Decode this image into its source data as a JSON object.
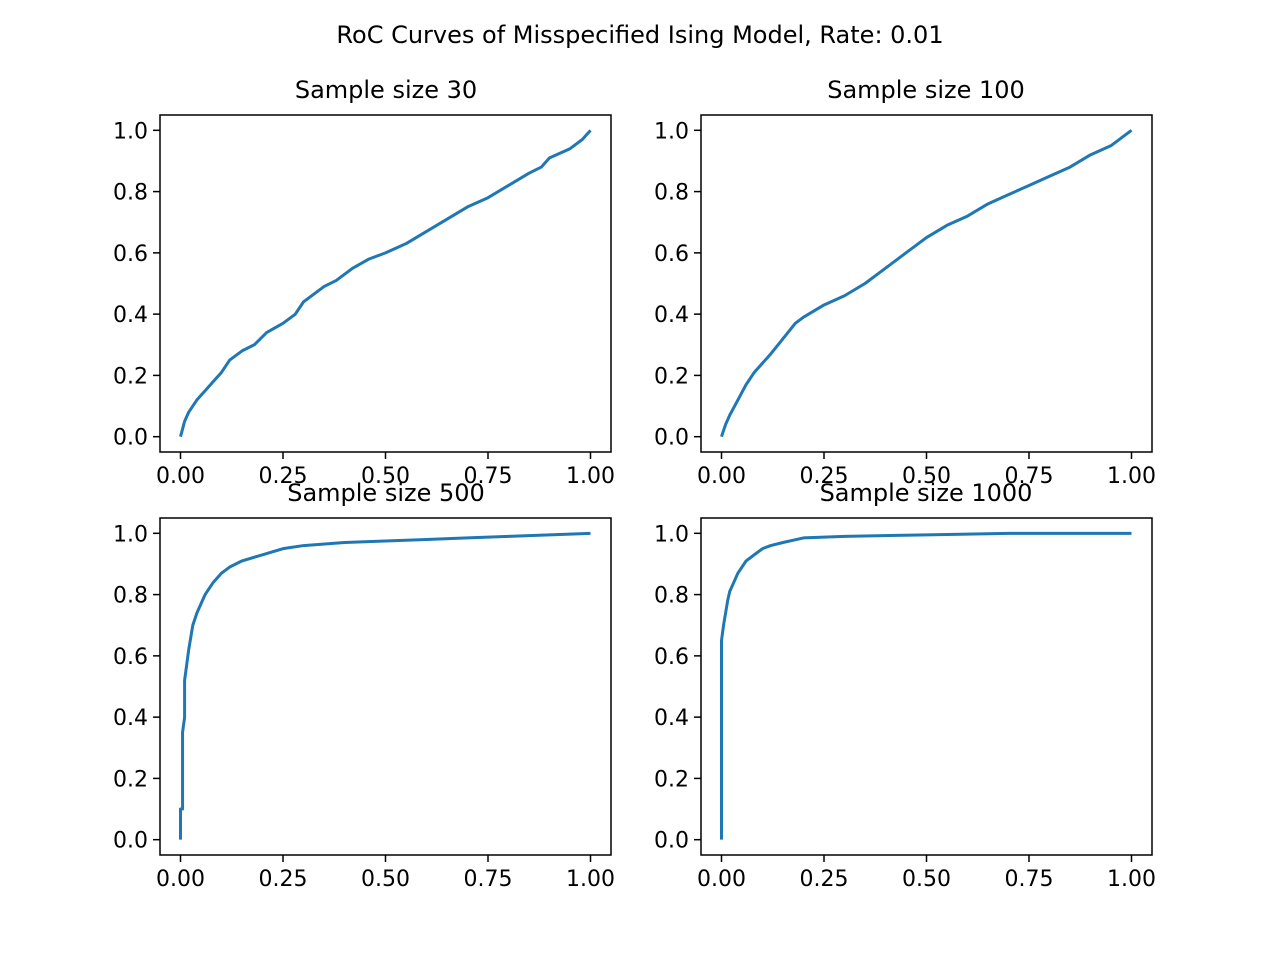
{
  "figure": {
    "suptitle": "RoC Curves of Misspecified Ising Model, Rate: 0.01",
    "line_color": "#1f77b4"
  },
  "chart_data": [
    {
      "type": "line",
      "title": "Sample size 30",
      "xlabel": "",
      "ylabel": "",
      "xlim": [
        -0.05,
        1.05
      ],
      "ylim": [
        -0.05,
        1.05
      ],
      "xticks": [
        "0.00",
        "0.25",
        "0.50",
        "0.75",
        "1.00"
      ],
      "yticks": [
        "0.0",
        "0.2",
        "0.4",
        "0.6",
        "0.8",
        "1.0"
      ],
      "grid": false,
      "series": [
        {
          "x": [
            0.0,
            0.01,
            0.02,
            0.04,
            0.06,
            0.08,
            0.1,
            0.12,
            0.15,
            0.18,
            0.21,
            0.25,
            0.28,
            0.3,
            0.33,
            0.35,
            0.38,
            0.42,
            0.46,
            0.5,
            0.55,
            0.6,
            0.65,
            0.7,
            0.75,
            0.8,
            0.85,
            0.88,
            0.9,
            0.95,
            0.98,
            1.0
          ],
          "y": [
            0.0,
            0.05,
            0.08,
            0.12,
            0.15,
            0.18,
            0.21,
            0.25,
            0.28,
            0.3,
            0.34,
            0.37,
            0.4,
            0.44,
            0.47,
            0.49,
            0.51,
            0.55,
            0.58,
            0.6,
            0.63,
            0.67,
            0.71,
            0.75,
            0.78,
            0.82,
            0.86,
            0.88,
            0.91,
            0.94,
            0.97,
            1.0
          ]
        }
      ]
    },
    {
      "type": "line",
      "title": "Sample size 100",
      "xlabel": "",
      "ylabel": "",
      "xlim": [
        -0.05,
        1.05
      ],
      "ylim": [
        -0.05,
        1.05
      ],
      "xticks": [
        "0.00",
        "0.25",
        "0.50",
        "0.75",
        "1.00"
      ],
      "yticks": [
        "0.0",
        "0.2",
        "0.4",
        "0.6",
        "0.8",
        "1.0"
      ],
      "grid": false,
      "series": [
        {
          "x": [
            0.0,
            0.01,
            0.02,
            0.04,
            0.06,
            0.08,
            0.1,
            0.12,
            0.15,
            0.18,
            0.2,
            0.25,
            0.3,
            0.35,
            0.4,
            0.45,
            0.5,
            0.55,
            0.6,
            0.65,
            0.7,
            0.75,
            0.8,
            0.85,
            0.9,
            0.95,
            0.98,
            1.0
          ],
          "y": [
            0.0,
            0.04,
            0.07,
            0.12,
            0.17,
            0.21,
            0.24,
            0.27,
            0.32,
            0.37,
            0.39,
            0.43,
            0.46,
            0.5,
            0.55,
            0.6,
            0.65,
            0.69,
            0.72,
            0.76,
            0.79,
            0.82,
            0.85,
            0.88,
            0.92,
            0.95,
            0.98,
            1.0
          ]
        }
      ]
    },
    {
      "type": "line",
      "title": "Sample size 500",
      "xlabel": "",
      "ylabel": "",
      "xlim": [
        -0.05,
        1.05
      ],
      "ylim": [
        -0.05,
        1.05
      ],
      "xticks": [
        "0.00",
        "0.25",
        "0.50",
        "0.75",
        "1.00"
      ],
      "yticks": [
        "0.0",
        "0.2",
        "0.4",
        "0.6",
        "0.8",
        "1.0"
      ],
      "grid": false,
      "series": [
        {
          "x": [
            0.0,
            0.0,
            0.005,
            0.005,
            0.01,
            0.01,
            0.015,
            0.02,
            0.025,
            0.03,
            0.04,
            0.05,
            0.06,
            0.08,
            0.1,
            0.12,
            0.15,
            0.2,
            0.25,
            0.3,
            0.4,
            0.5,
            0.6,
            0.7,
            0.8,
            0.9,
            1.0
          ],
          "y": [
            0.0,
            0.1,
            0.1,
            0.35,
            0.4,
            0.52,
            0.57,
            0.62,
            0.66,
            0.7,
            0.74,
            0.77,
            0.8,
            0.84,
            0.87,
            0.89,
            0.91,
            0.93,
            0.95,
            0.96,
            0.97,
            0.975,
            0.98,
            0.985,
            0.99,
            0.995,
            1.0
          ]
        }
      ]
    },
    {
      "type": "line",
      "title": "Sample size 1000",
      "xlabel": "",
      "ylabel": "",
      "xlim": [
        -0.05,
        1.05
      ],
      "ylim": [
        -0.05,
        1.05
      ],
      "xticks": [
        "0.00",
        "0.25",
        "0.50",
        "0.75",
        "1.00"
      ],
      "yticks": [
        "0.0",
        "0.2",
        "0.4",
        "0.6",
        "0.8",
        "1.0"
      ],
      "grid": false,
      "series": [
        {
          "x": [
            0.0,
            0.0,
            0.005,
            0.01,
            0.015,
            0.02,
            0.03,
            0.04,
            0.05,
            0.06,
            0.08,
            0.1,
            0.12,
            0.15,
            0.2,
            0.3,
            0.5,
            0.7,
            1.0
          ],
          "y": [
            0.0,
            0.65,
            0.7,
            0.74,
            0.78,
            0.81,
            0.84,
            0.87,
            0.89,
            0.91,
            0.93,
            0.95,
            0.96,
            0.97,
            0.985,
            0.99,
            0.995,
            1.0,
            1.0
          ]
        }
      ]
    }
  ]
}
